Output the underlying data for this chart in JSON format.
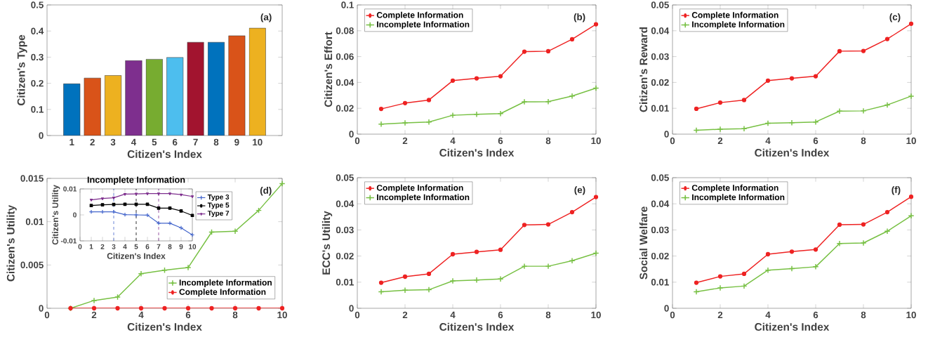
{
  "chart_data": [
    {
      "type": "bar",
      "xlabel": "Citizen's Index",
      "ylabel": "Citizen's Type",
      "categories": [
        "1",
        "2",
        "3",
        "4",
        "5",
        "6",
        "7",
        "8",
        "9",
        "10"
      ],
      "values": [
        0.198,
        0.22,
        0.23,
        0.287,
        0.292,
        0.299,
        0.357,
        0.357,
        0.382,
        0.411
      ],
      "colors": [
        "#0072bd",
        "#d95319",
        "#edb120",
        "#7e2f8e",
        "#77ac30",
        "#4dbeee",
        "#a2142f",
        "#0072bd",
        "#d95319",
        "#edb120"
      ],
      "ylim": [
        0,
        0.5
      ],
      "yticks": [
        0,
        0.1,
        0.2,
        0.3,
        0.4,
        0.5
      ],
      "annotations": [
        "(a)"
      ]
    },
    {
      "type": "line",
      "xlabel": "Citizen's Index",
      "ylabel": "Citizen's Effort",
      "x": [
        1,
        2,
        3,
        4,
        5,
        6,
        7,
        8,
        9,
        10
      ],
      "xlim": [
        0,
        10
      ],
      "xticks": [
        0,
        2,
        4,
        6,
        8,
        10
      ],
      "ylim": [
        0,
        0.1
      ],
      "yticks": [
        0,
        0.02,
        0.04,
        0.06,
        0.08,
        0.1
      ],
      "legend": "top left",
      "annotations": [
        "(b)"
      ],
      "series": [
        {
          "name": "Complete Information",
          "color": "#ee2222",
          "marker": "circle",
          "values": [
            0.0195,
            0.024,
            0.0264,
            0.0414,
            0.0432,
            0.0448,
            0.0638,
            0.0642,
            0.0734,
            0.085
          ]
        },
        {
          "name": "Incomplete Information",
          "color": "#77c043",
          "marker": "cross",
          "values": [
            0.0078,
            0.0087,
            0.0094,
            0.0146,
            0.0154,
            0.0159,
            0.025,
            0.0251,
            0.0295,
            0.0356
          ]
        }
      ]
    },
    {
      "type": "line",
      "xlabel": "Citizen's Index",
      "ylabel": "Citizen's Reward",
      "x": [
        1,
        2,
        3,
        4,
        5,
        6,
        7,
        8,
        9,
        10
      ],
      "xlim": [
        0,
        10
      ],
      "xticks": [
        0,
        2,
        4,
        6,
        8,
        10
      ],
      "ylim": [
        0,
        0.05
      ],
      "yticks": [
        0,
        0.01,
        0.02,
        0.03,
        0.04,
        0.05
      ],
      "legend": "top left",
      "annotations": [
        "(c)"
      ],
      "series": [
        {
          "name": "Complete Information",
          "color": "#ee2222",
          "marker": "circle",
          "values": [
            0.0098,
            0.0122,
            0.0132,
            0.0207,
            0.0216,
            0.0224,
            0.0321,
            0.0322,
            0.0368,
            0.0427
          ]
        },
        {
          "name": "Incomplete Information",
          "color": "#77c043",
          "marker": "cross",
          "values": [
            0.0015,
            0.0019,
            0.0021,
            0.0042,
            0.0044,
            0.0047,
            0.0089,
            0.009,
            0.0113,
            0.0147
          ]
        }
      ]
    },
    {
      "type": "line",
      "xlabel": "Citizen's Index",
      "ylabel": "Citizen's Utility",
      "x": [
        1,
        2,
        3,
        4,
        5,
        6,
        7,
        8,
        9,
        10
      ],
      "xlim": [
        0,
        10
      ],
      "xticks": [
        0,
        2,
        4,
        6,
        8,
        10
      ],
      "ylim": [
        0,
        0.015
      ],
      "yticks": [
        0,
        0.005,
        0.01,
        0.015
      ],
      "legend": "bottom right",
      "annotations": [
        "(d)"
      ],
      "series": [
        {
          "name": "Incomplete Information",
          "color": "#77c043",
          "marker": "cross",
          "values": [
            0,
            0.0009,
            0.0013,
            0.004,
            0.0044,
            0.0047,
            0.0088,
            0.0089,
            0.0113,
            0.0144
          ]
        },
        {
          "name": "Complete Information",
          "color": "#ee2222",
          "marker": "circle",
          "values": [
            0,
            0,
            0,
            0,
            0,
            0,
            0,
            0,
            0,
            0
          ]
        }
      ]
    },
    {
      "type": "line",
      "title": "Incomplete Information",
      "xlabel": "Citizen's Index",
      "ylabel": "Citizen's Utility",
      "x": [
        1,
        2,
        3,
        4,
        5,
        6,
        7,
        8,
        9,
        10
      ],
      "xlim": [
        0,
        10
      ],
      "xticks": [
        0,
        1,
        2,
        3,
        4,
        5,
        6,
        7,
        8,
        9,
        10
      ],
      "ylim": [
        -0.01,
        0.01
      ],
      "yticks": [
        -0.01,
        0,
        0.01
      ],
      "legend": "right",
      "ref_lines": [
        {
          "axis": "x",
          "value": 3,
          "color": "#4466cc",
          "line_style": "dashed"
        },
        {
          "axis": "x",
          "value": 5,
          "color": "#000000",
          "line_style": "dashed"
        },
        {
          "axis": "x",
          "value": 7,
          "color": "#7e2f8e",
          "line_style": "dashed"
        }
      ],
      "series": [
        {
          "name": "Type 3",
          "color": "#4466cc",
          "marker": "cross",
          "values": [
            0.0012,
            0.0012,
            0.0012,
            0.0001,
            0,
            -0.0001,
            -0.0032,
            -0.0032,
            -0.005,
            -0.0077
          ]
        },
        {
          "name": "Type 5",
          "color": "#000000",
          "marker": "square",
          "values": [
            0.0036,
            0.0039,
            0.004,
            0.0041,
            0.0041,
            0.0041,
            0.0026,
            0.0026,
            0.0015,
            -0.0002
          ]
        },
        {
          "name": "Type 7",
          "color": "#7e2f8e",
          "marker": "triangle",
          "values": [
            0.0058,
            0.0063,
            0.0066,
            0.008,
            0.0081,
            0.0082,
            0.0082,
            0.0082,
            0.0078,
            0.0071
          ]
        }
      ]
    },
    {
      "type": "line",
      "xlabel": "Citizen's Index",
      "ylabel": "ECC's Utility",
      "x": [
        1,
        2,
        3,
        4,
        5,
        6,
        7,
        8,
        9,
        10
      ],
      "xlim": [
        0,
        10
      ],
      "xticks": [
        0,
        2,
        4,
        6,
        8,
        10
      ],
      "ylim": [
        0,
        0.05
      ],
      "yticks": [
        0,
        0.01,
        0.02,
        0.03,
        0.04,
        0.05
      ],
      "legend": "top left",
      "annotations": [
        "(e)"
      ],
      "series": [
        {
          "name": "Complete Information",
          "color": "#ee2222",
          "marker": "circle",
          "values": [
            0.0098,
            0.0121,
            0.0132,
            0.0207,
            0.0216,
            0.0224,
            0.0319,
            0.0321,
            0.0368,
            0.0426
          ]
        },
        {
          "name": "Incomplete Information",
          "color": "#77c043",
          "marker": "cross",
          "values": [
            0.0063,
            0.0069,
            0.0071,
            0.0105,
            0.0108,
            0.0112,
            0.0161,
            0.0161,
            0.0182,
            0.0211
          ]
        }
      ]
    },
    {
      "type": "line",
      "xlabel": "Citizen's Index",
      "ylabel": "Social Welfare",
      "x": [
        1,
        2,
        3,
        4,
        5,
        6,
        7,
        8,
        9,
        10
      ],
      "xlim": [
        0,
        10
      ],
      "xticks": [
        0,
        2,
        4,
        6,
        8,
        10
      ],
      "ylim": [
        0,
        0.05
      ],
      "yticks": [
        0,
        0.01,
        0.02,
        0.03,
        0.04,
        0.05
      ],
      "legend": "top left",
      "annotations": [
        "(f)"
      ],
      "series": [
        {
          "name": "Complete Information",
          "color": "#ee2222",
          "marker": "circle",
          "values": [
            0.0098,
            0.0122,
            0.0132,
            0.0207,
            0.0217,
            0.0225,
            0.032,
            0.0321,
            0.0368,
            0.0427
          ]
        },
        {
          "name": "Incomplete Information",
          "color": "#77c043",
          "marker": "cross",
          "values": [
            0.0063,
            0.0078,
            0.0085,
            0.0146,
            0.0152,
            0.0159,
            0.0248,
            0.025,
            0.0295,
            0.0354
          ]
        }
      ]
    }
  ]
}
